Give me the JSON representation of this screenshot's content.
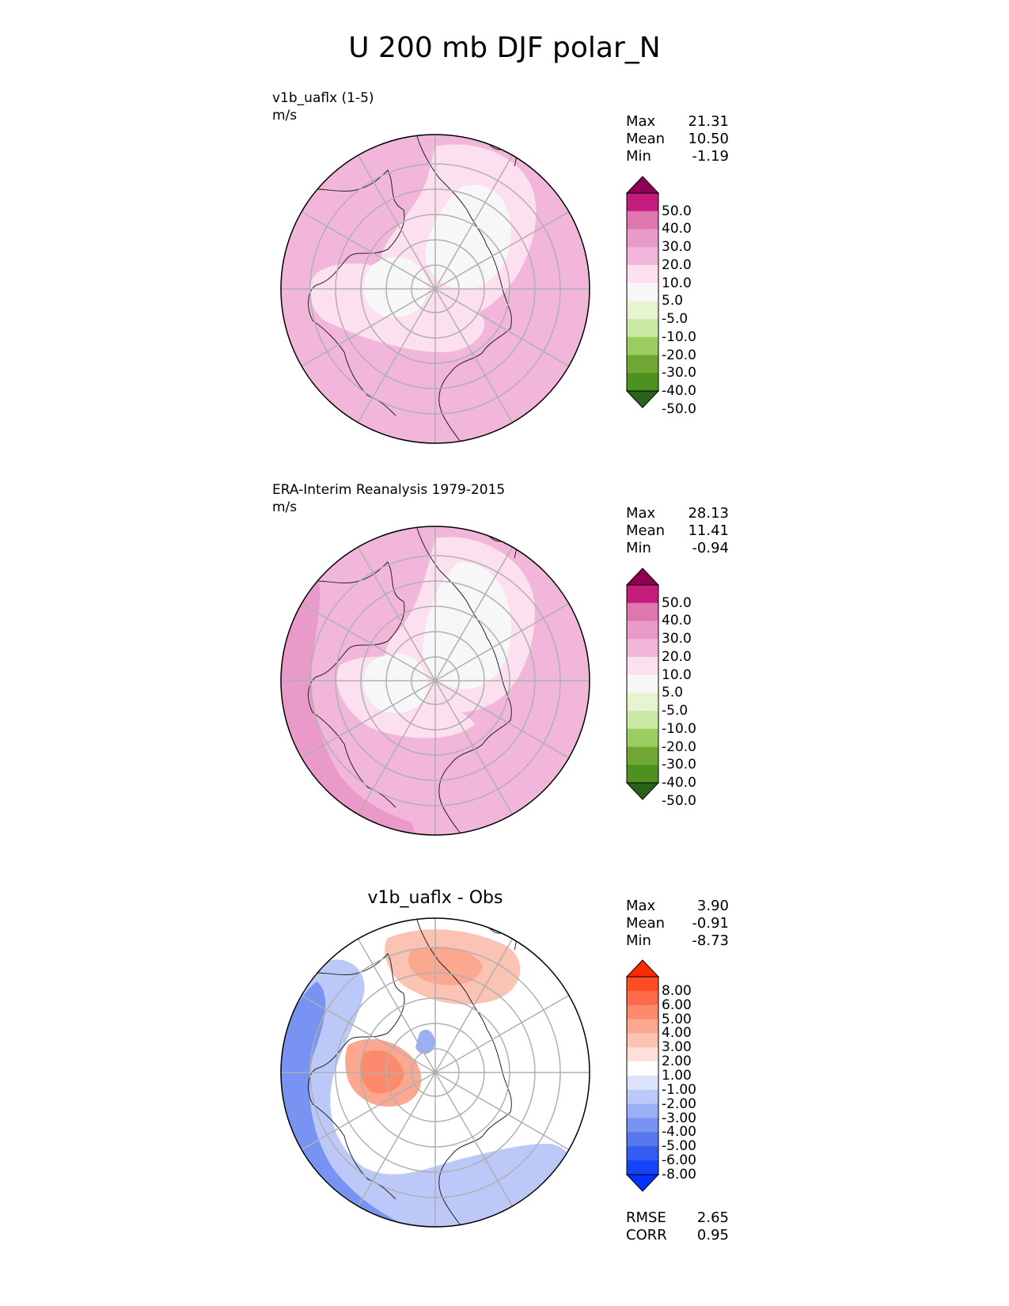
{
  "title": "U 200 mb DJF polar_N",
  "panels": [
    {
      "label_line1": "v1b_uaflx (1-5)",
      "label_line2": "m/s",
      "center_title": "",
      "stats": [
        {
          "name": "Max",
          "value": "21.31"
        },
        {
          "name": "Mean",
          "value": "10.50"
        },
        {
          "name": "Min",
          "value": "-1.19"
        }
      ],
      "colorbar": {
        "labels": [
          "50.0",
          "40.0",
          "30.0",
          "20.0",
          "10.0",
          "5.0",
          "-5.0",
          "-10.0",
          "-20.0",
          "-30.0",
          "-40.0",
          "-50.0"
        ],
        "colors": [
          "#8e0152",
          "#c51b7d",
          "#de77ae",
          "#e99ac8",
          "#f1b6da",
          "#fde0ef",
          "#f7f7f7",
          "#e6f5d0",
          "#c8e8a3",
          "#9ccd62",
          "#6ea832",
          "#4d9221",
          "#276419"
        ]
      }
    },
    {
      "label_line1": "ERA-Interim Reanalysis 1979-2015",
      "label_line2": "m/s",
      "center_title": "",
      "stats": [
        {
          "name": "Max",
          "value": "28.13"
        },
        {
          "name": "Mean",
          "value": "11.41"
        },
        {
          "name": "Min",
          "value": "-0.94"
        }
      ],
      "colorbar": {
        "labels": [
          "50.0",
          "40.0",
          "30.0",
          "20.0",
          "10.0",
          "5.0",
          "-5.0",
          "-10.0",
          "-20.0",
          "-30.0",
          "-40.0",
          "-50.0"
        ],
        "colors": [
          "#8e0152",
          "#c51b7d",
          "#de77ae",
          "#e99ac8",
          "#f1b6da",
          "#fde0ef",
          "#f7f7f7",
          "#e6f5d0",
          "#c8e8a3",
          "#9ccd62",
          "#6ea832",
          "#4d9221",
          "#276419"
        ]
      }
    },
    {
      "label_line1": "",
      "label_line2": "",
      "center_title": "v1b_uaflx - Obs",
      "stats": [
        {
          "name": "Max",
          "value": "3.90"
        },
        {
          "name": "Mean",
          "value": "-0.91"
        },
        {
          "name": "Min",
          "value": "-8.73"
        }
      ],
      "colorbar": {
        "labels": [
          "8.00",
          "6.00",
          "5.00",
          "4.00",
          "3.00",
          "2.00",
          "1.00",
          "-1.00",
          "-2.00",
          "-3.00",
          "-4.00",
          "-5.00",
          "-6.00",
          "-8.00"
        ],
        "colors": [
          "#ff2a00",
          "#ff4d26",
          "#ff6a4a",
          "#fe8a6e",
          "#fca78f",
          "#fbc3b3",
          "#fde1da",
          "#ffffff",
          "#dde3fb",
          "#bcc8f7",
          "#9aaff5",
          "#7893f2",
          "#5777ef",
          "#355cf0",
          "#1543f5",
          "#0033ff"
        ]
      },
      "metrics": [
        {
          "name": "RMSE",
          "value": "2.65"
        },
        {
          "name": "CORR",
          "value": "0.95"
        }
      ]
    }
  ],
  "chart_data": [
    {
      "type": "heatmap",
      "projection": "north polar stereographic",
      "title": "v1b_uaflx (1-5)",
      "units": "m/s",
      "levels": [
        -50,
        -40,
        -30,
        -20,
        -10,
        -5,
        5,
        10,
        20,
        30,
        40,
        50
      ],
      "stats": {
        "max": 21.31,
        "mean": 10.5,
        "min": -1.19
      }
    },
    {
      "type": "heatmap",
      "projection": "north polar stereographic",
      "title": "ERA-Interim Reanalysis 1979-2015",
      "units": "m/s",
      "levels": [
        -50,
        -40,
        -30,
        -20,
        -10,
        -5,
        5,
        10,
        20,
        30,
        40,
        50
      ],
      "stats": {
        "max": 28.13,
        "mean": 11.41,
        "min": -0.94
      }
    },
    {
      "type": "heatmap",
      "projection": "north polar stereographic",
      "title": "v1b_uaflx - Obs",
      "levels": [
        -8,
        -6,
        -5,
        -4,
        -3,
        -2,
        -1,
        1,
        2,
        3,
        4,
        5,
        6,
        8
      ],
      "stats": {
        "max": 3.9,
        "mean": -0.91,
        "min": -8.73,
        "rmse": 2.65,
        "corr": 0.95
      }
    }
  ]
}
